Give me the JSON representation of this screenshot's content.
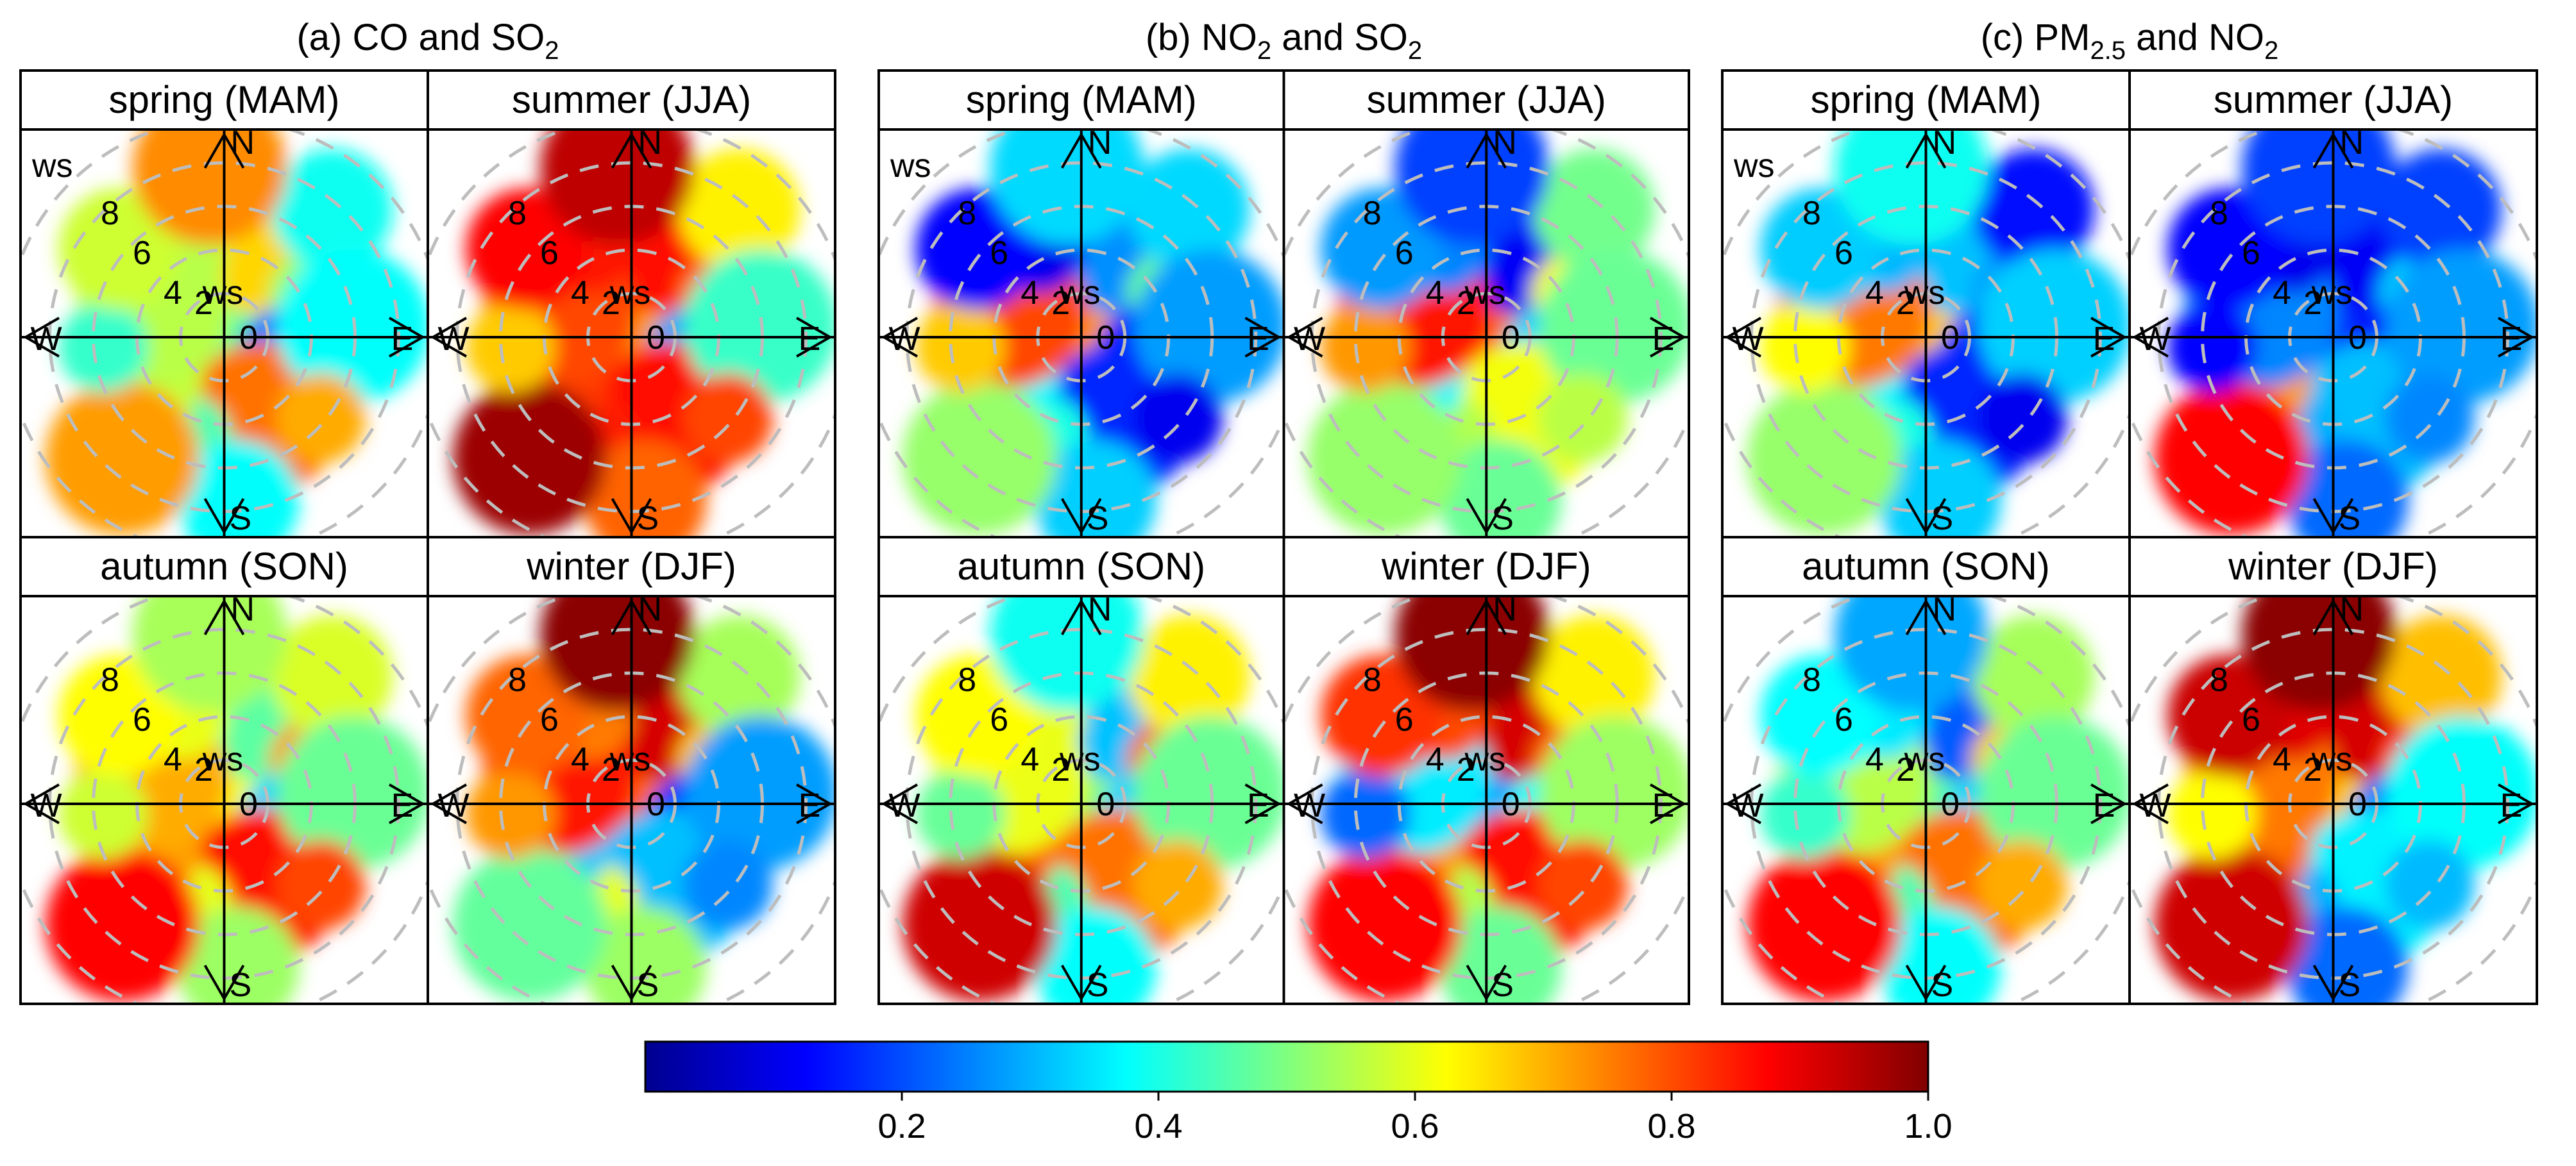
{
  "chart_data": {
    "type": "heatmap",
    "chart_type_detail": "polar conditional correlation plots (wind speed vs. wind direction), 3 pollutant pairs x 4 seasons",
    "panels": [
      {
        "title": "(a)  CO and SO",
        "title_sub": "2",
        "seasons": [
          "spring (MAM)",
          "summer (JJA)",
          "autumn (SON)",
          "winter (DJF)"
        ],
        "values": [
          [
            0.55,
            0.7,
            0.45,
            0.3,
            0.75,
            0.4,
            0.65,
            0.5
          ],
          [
            0.85,
            0.9,
            0.7,
            0.35,
            0.85,
            0.8,
            0.9,
            0.75
          ],
          [
            0.6,
            0.5,
            0.65,
            0.4,
            0.85,
            0.55,
            0.8,
            0.65
          ],
          [
            0.75,
            0.95,
            0.6,
            0.2,
            0.3,
            0.55,
            0.4,
            0.8
          ]
        ]
      },
      {
        "title": "(b)  NO",
        "title_sub": "2",
        "title_suffix": " and SO",
        "title_suffix_sub": "2",
        "seasons": [
          "spring (MAM)",
          "summer (JJA)",
          "autumn (SON)",
          "winter (DJF)"
        ],
        "values": [
          [
            0.1,
            0.3,
            0.4,
            0.2,
            0.15,
            0.35,
            0.45,
            0.75
          ],
          [
            0.25,
            0.15,
            0.55,
            0.4,
            0.6,
            0.5,
            0.45,
            0.8
          ],
          [
            0.6,
            0.35,
            0.7,
            0.4,
            0.75,
            0.4,
            0.85,
            0.55
          ],
          [
            0.8,
            0.95,
            0.7,
            0.45,
            0.85,
            0.5,
            0.8,
            0.3
          ]
        ]
      },
      {
        "title": "(c)  PM",
        "title_sub": "2.5",
        "title_suffix": " and NO",
        "title_suffix_sub": "2",
        "seasons": [
          "spring (MAM)",
          "summer (JJA)",
          "autumn (SON)",
          "winter (DJF)"
        ],
        "values": [
          [
            0.3,
            0.35,
            0.2,
            0.25,
            0.15,
            0.35,
            0.45,
            0.7
          ],
          [
            0.1,
            0.15,
            0.25,
            0.2,
            0.3,
            0.25,
            0.8,
            0.2
          ],
          [
            0.35,
            0.25,
            0.6,
            0.4,
            0.75,
            0.4,
            0.8,
            0.5
          ],
          [
            0.9,
            0.95,
            0.75,
            0.3,
            0.35,
            0.25,
            0.85,
            0.7
          ]
        ]
      }
    ],
    "direction_labels": [
      "N",
      "E",
      "S",
      "W"
    ],
    "ws_rings": [
      "0",
      "2",
      "4",
      "6",
      "8"
    ],
    "ws_label": "ws",
    "colorbar": {
      "range": [
        0,
        1.0
      ],
      "ticks": [
        "0.2",
        "0.4",
        "0.6",
        "0.8",
        "1.0"
      ],
      "tick_values": [
        0.2,
        0.4,
        0.6,
        0.8,
        1.0
      ],
      "colormap": "jet"
    }
  }
}
